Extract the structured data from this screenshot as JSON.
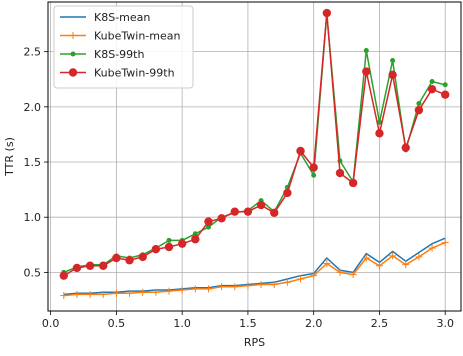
{
  "chart_data": {
    "type": "line",
    "title": "",
    "xlabel": "RPS",
    "ylabel": "TTR (s)",
    "xlim": [
      -0.02,
      3.12
    ],
    "ylim": [
      0.15,
      2.95
    ],
    "grid": true,
    "legend_placement": "top-left",
    "x_ticks": [
      0.0,
      0.5,
      1.0,
      1.5,
      2.0,
      2.5,
      3.0
    ],
    "x_tick_labels": [
      "0.0",
      "0.5",
      "1.0",
      "1.5",
      "2.0",
      "2.5",
      "3.0"
    ],
    "y_ticks": [
      0.5,
      1.0,
      1.5,
      2.0,
      2.5
    ],
    "y_tick_labels": [
      "0.5",
      "1.0",
      "1.5",
      "2.0",
      "2.5"
    ],
    "x": [
      0.1,
      0.2,
      0.3,
      0.4,
      0.5,
      0.6,
      0.7,
      0.8,
      0.9,
      1.0,
      1.1,
      1.2,
      1.3,
      1.4,
      1.5,
      1.6,
      1.7,
      1.8,
      1.9,
      2.0,
      2.1,
      2.2,
      2.3,
      2.4,
      2.5,
      2.6,
      2.7,
      2.8,
      2.9,
      3.0
    ],
    "series": [
      {
        "name": "K8S-mean",
        "color": "#1f77b4",
        "marker": "none",
        "values": [
          0.3,
          0.31,
          0.31,
          0.32,
          0.32,
          0.33,
          0.33,
          0.34,
          0.34,
          0.35,
          0.36,
          0.36,
          0.38,
          0.38,
          0.39,
          0.4,
          0.41,
          0.44,
          0.47,
          0.49,
          0.63,
          0.52,
          0.5,
          0.67,
          0.59,
          0.69,
          0.6,
          0.68,
          0.76,
          0.81
        ]
      },
      {
        "name": "KubeTwin-mean",
        "color": "#ff7f0e",
        "marker": "plus",
        "values": [
          0.29,
          0.3,
          0.3,
          0.3,
          0.31,
          0.31,
          0.32,
          0.32,
          0.33,
          0.34,
          0.35,
          0.35,
          0.37,
          0.37,
          0.38,
          0.39,
          0.39,
          0.41,
          0.44,
          0.47,
          0.58,
          0.5,
          0.48,
          0.63,
          0.56,
          0.65,
          0.57,
          0.64,
          0.72,
          0.77
        ]
      },
      {
        "name": "K8S-99th",
        "color": "#2ca02c",
        "marker": "dot",
        "values": [
          0.5,
          0.55,
          0.57,
          0.57,
          0.65,
          0.63,
          0.66,
          0.72,
          0.79,
          0.79,
          0.85,
          0.91,
          1.0,
          1.04,
          1.06,
          1.15,
          1.05,
          1.27,
          1.58,
          1.38,
          2.84,
          1.51,
          1.32,
          2.51,
          1.86,
          2.42,
          1.61,
          2.03,
          2.23,
          2.2
        ]
      },
      {
        "name": "KubeTwin-99th",
        "color": "#d62728",
        "marker": "circle",
        "values": [
          0.47,
          0.54,
          0.56,
          0.56,
          0.63,
          0.61,
          0.64,
          0.71,
          0.73,
          0.76,
          0.8,
          0.96,
          0.99,
          1.05,
          1.05,
          1.11,
          1.04,
          1.22,
          1.6,
          1.45,
          2.85,
          1.4,
          1.31,
          2.32,
          1.76,
          2.29,
          1.63,
          1.97,
          2.16,
          2.11
        ]
      }
    ]
  }
}
